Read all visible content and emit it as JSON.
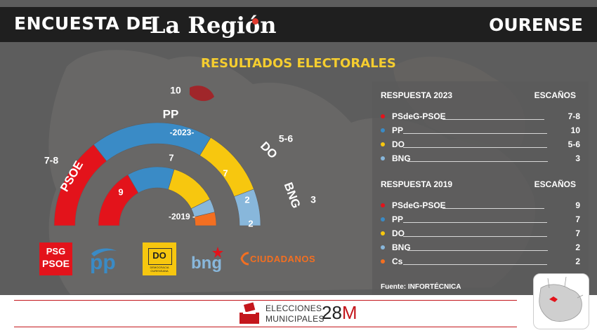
{
  "header": {
    "title": "ENCUESTA DE",
    "brand": "La Región",
    "city": "OURENSE"
  },
  "subtitle": "RESULTADOS ELECTORALES",
  "chart_data": {
    "type": "parliament-semicircle",
    "series": [
      {
        "name": "2023",
        "label": "-2023-",
        "parties": [
          {
            "party": "PSOE",
            "seats_label": "7-8",
            "seats": 7.5,
            "color": "#e3131b"
          },
          {
            "party": "PP",
            "seats_label": "10",
            "seats": 10,
            "color": "#3a8bc6"
          },
          {
            "party": "DO",
            "seats_label": "5-6",
            "seats": 5.5,
            "color": "#f7c70f"
          },
          {
            "party": "BNG",
            "seats_label": "3",
            "seats": 3,
            "color": "#88b7db"
          }
        ]
      },
      {
        "name": "2019",
        "label": "-2019 -",
        "parties": [
          {
            "party": "PSdeG-PSOE",
            "seats_label": "9",
            "seats": 9,
            "color": "#e3131b"
          },
          {
            "party": "PP",
            "seats_label": "7",
            "seats": 7,
            "color": "#3a8bc6"
          },
          {
            "party": "DO",
            "seats_label": "7",
            "seats": 7,
            "color": "#f7c70f"
          },
          {
            "party": "BNG",
            "seats_label": "2",
            "seats": 2,
            "color": "#88b7db"
          },
          {
            "party": "Cs",
            "seats_label": "2",
            "seats": 2,
            "color": "#f36f21"
          }
        ]
      }
    ]
  },
  "panel": {
    "section_2023": {
      "header": "RESPUESTA 2023",
      "seats_header": "ESCAÑOS",
      "rows": [
        {
          "name": "PSdeG-PSOE",
          "value": "7-8",
          "color": "#e3131b"
        },
        {
          "name": "PP",
          "value": "10",
          "color": "#3a8bc6"
        },
        {
          "name": "DO",
          "value": "5-6",
          "color": "#f7c70f"
        },
        {
          "name": "BNG",
          "value": "3",
          "color": "#88b7db"
        }
      ]
    },
    "section_2019": {
      "header": "RESPUESTA 2019",
      "seats_header": "ESCAÑOS",
      "rows": [
        {
          "name": "PSdeG-PSOE",
          "value": "9",
          "color": "#e3131b"
        },
        {
          "name": "PP",
          "value": "7",
          "color": "#3a8bc6"
        },
        {
          "name": "DO",
          "value": "7",
          "color": "#f7c70f"
        },
        {
          "name": "BNG",
          "value": "2",
          "color": "#88b7db"
        },
        {
          "name": "Cs",
          "value": "2",
          "color": "#f36f21"
        }
      ]
    },
    "source": "Fuente: INFORTÉCNICA"
  },
  "logos": {
    "psoe_top": "PSG",
    "psoe_bottom": "PSOE",
    "pp": "pp",
    "do_text": "DO",
    "do_small": "DEMOCRACIA OURENSANA",
    "bng": "bng",
    "cs": "CIUDADANOS"
  },
  "footer": {
    "line1": "ELECCIONES",
    "line2": "MUNICIPALES",
    "big_num": "28",
    "big_letter": "M"
  }
}
